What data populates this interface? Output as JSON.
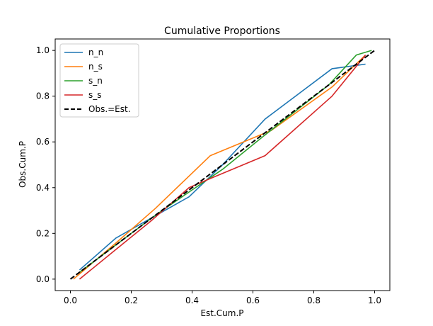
{
  "chart_data": {
    "type": "line",
    "title": "Cumulative Proportions",
    "xlabel": "Est.Cum.P",
    "ylabel": "Obs.Cum.P",
    "xlim": [
      -0.05,
      1.05
    ],
    "ylim": [
      -0.05,
      1.05
    ],
    "xticks": [
      0.0,
      0.2,
      0.4,
      0.6,
      0.8,
      1.0
    ],
    "yticks": [
      0.0,
      0.2,
      0.4,
      0.6,
      0.8,
      1.0
    ],
    "xtick_labels": [
      "0.0",
      "0.2",
      "0.4",
      "0.6",
      "0.8",
      "1.0"
    ],
    "ytick_labels": [
      "0.0",
      "0.2",
      "0.4",
      "0.6",
      "0.8",
      "1.0"
    ],
    "legend_position": "top-left",
    "series": [
      {
        "name": "n_n",
        "color": "#1f77b4",
        "dash": "solid",
        "points": [
          [
            0.03,
            0.04
          ],
          [
            0.15,
            0.18
          ],
          [
            0.27,
            0.27
          ],
          [
            0.39,
            0.36
          ],
          [
            0.5,
            0.5
          ],
          [
            0.64,
            0.7
          ],
          [
            0.86,
            0.92
          ],
          [
            0.97,
            0.94
          ]
        ]
      },
      {
        "name": "n_s",
        "color": "#ff7f0e",
        "dash": "solid",
        "points": [
          [
            0.01,
            0.0
          ],
          [
            0.16,
            0.17
          ],
          [
            0.28,
            0.31
          ],
          [
            0.46,
            0.54
          ],
          [
            0.66,
            0.65
          ],
          [
            0.86,
            0.84
          ],
          [
            0.97,
            0.98
          ]
        ]
      },
      {
        "name": "s_n",
        "color": "#2ca02c",
        "dash": "solid",
        "points": [
          [
            0.02,
            0.02
          ],
          [
            0.15,
            0.15
          ],
          [
            0.28,
            0.28
          ],
          [
            0.4,
            0.39
          ],
          [
            0.5,
            0.48
          ],
          [
            0.63,
            0.62
          ],
          [
            0.85,
            0.85
          ],
          [
            0.94,
            0.98
          ],
          [
            0.99,
            1.0
          ]
        ]
      },
      {
        "name": "s_s",
        "color": "#d62728",
        "dash": "solid",
        "points": [
          [
            0.03,
            0.0
          ],
          [
            0.15,
            0.13
          ],
          [
            0.27,
            0.26
          ],
          [
            0.39,
            0.4
          ],
          [
            0.46,
            0.44
          ],
          [
            0.64,
            0.54
          ],
          [
            0.86,
            0.8
          ],
          [
            0.97,
            0.98
          ]
        ]
      },
      {
        "name": "Obs.=Est.",
        "color": "#000000",
        "dash": "dashed",
        "points": [
          [
            0.0,
            0.0
          ],
          [
            1.0,
            1.0
          ]
        ]
      }
    ]
  }
}
